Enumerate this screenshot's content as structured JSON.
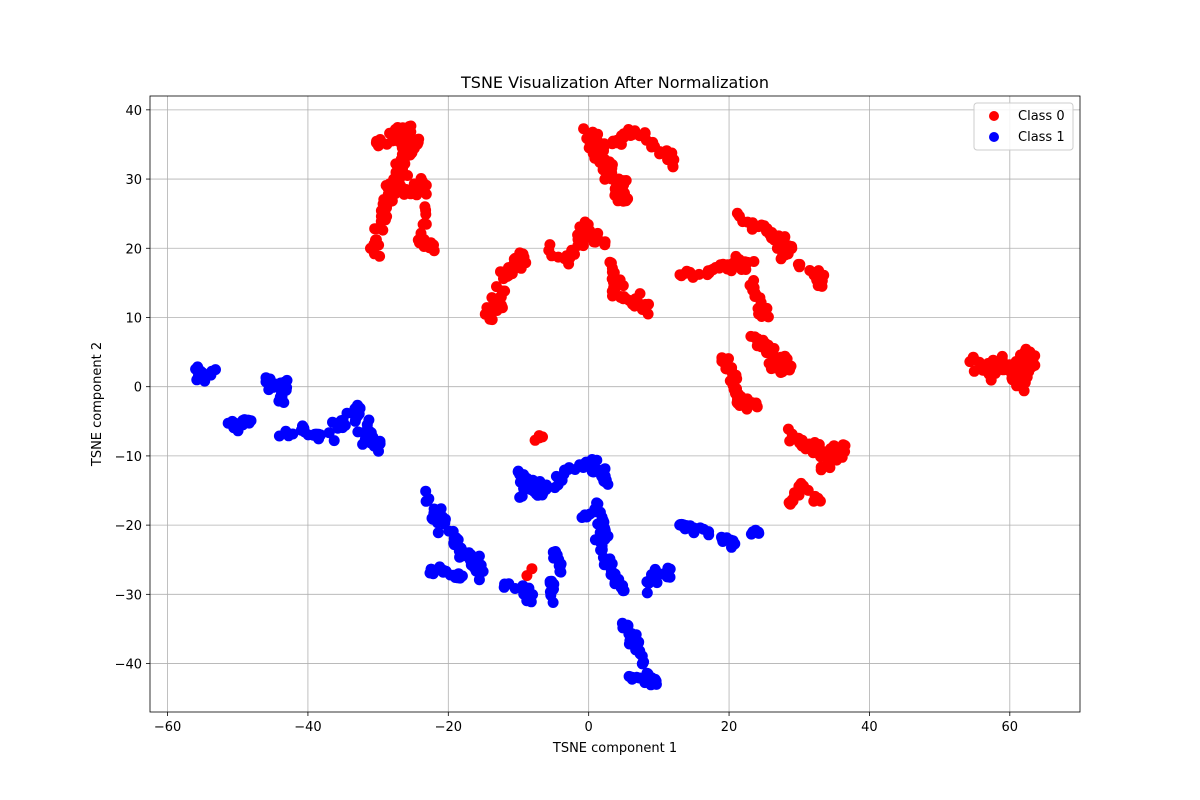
{
  "chart_data": {
    "type": "scatter",
    "title": "TSNE Visualization After Normalization",
    "xlabel": "TSNE component 1",
    "ylabel": "TSNE component 2",
    "xlim": [
      -62.5,
      70
    ],
    "ylim": [
      -47,
      42
    ],
    "xticks": [
      -60,
      -40,
      -20,
      0,
      20,
      40,
      60
    ],
    "yticks": [
      -40,
      -30,
      -20,
      -10,
      0,
      10,
      20,
      30,
      40
    ],
    "grid": true,
    "legend_position": "top-right",
    "series": [
      {
        "name": "Class 0",
        "color": "#ff0000",
        "clusters": [
          {
            "path": [
              [
                -31,
                19
              ],
              [
                -30,
                23
              ],
              [
                -29,
                26
              ],
              [
                -28,
                29
              ],
              [
                -27,
                31
              ],
              [
                -26,
                33
              ],
              [
                -25,
                35
              ],
              [
                -26,
                37
              ],
              [
                -28,
                36
              ],
              [
                -30,
                35
              ]
            ],
            "jitter": 1.0,
            "n": 110
          },
          {
            "path": [
              [
                -27,
                29
              ],
              [
                -25,
                28
              ],
              [
                -24,
                30
              ],
              [
                -23,
                27
              ],
              [
                -24,
                21
              ],
              [
                -22,
                20
              ]
            ],
            "jitter": 0.8,
            "n": 35
          },
          {
            "path": [
              [
                -14,
                10
              ],
              [
                -13,
                12
              ],
              [
                -12,
                15
              ],
              [
                -11,
                17
              ],
              [
                -9,
                19
              ]
            ],
            "jitter": 0.9,
            "n": 45
          },
          {
            "path": [
              [
                -6,
                20
              ],
              [
                -3,
                18
              ],
              [
                -1,
                21
              ],
              [
                0,
                23
              ],
              [
                1,
                22
              ],
              [
                2,
                20
              ]
            ],
            "jitter": 0.8,
            "n": 35
          },
          {
            "path": [
              [
                0,
                37
              ],
              [
                1,
                35
              ],
              [
                2,
                33
              ],
              [
                3,
                31
              ],
              [
                4,
                29
              ],
              [
                5,
                27
              ],
              [
                5,
                30
              ]
            ],
            "jitter": 0.8,
            "n": 70
          },
          {
            "path": [
              [
                3,
                35
              ],
              [
                5,
                36
              ],
              [
                7,
                37
              ],
              [
                9,
                35
              ],
              [
                11,
                33
              ],
              [
                12,
                32
              ]
            ],
            "jitter": 0.7,
            "n": 35
          },
          {
            "path": [
              [
                3,
                18
              ],
              [
                4,
                15
              ],
              [
                5,
                13
              ],
              [
                7,
                12
              ],
              [
                8,
                11
              ]
            ],
            "jitter": 0.8,
            "n": 40
          },
          {
            "path": [
              [
                13,
                16
              ],
              [
                16,
                16.5
              ],
              [
                19,
                17
              ],
              [
                21,
                18
              ],
              [
                23,
                18
              ]
            ],
            "jitter": 0.6,
            "n": 40
          },
          {
            "path": [
              [
                22,
                24.5
              ],
              [
                24,
                23
              ],
              [
                26,
                22
              ],
              [
                28,
                21
              ],
              [
                28,
                19
              ]
            ],
            "jitter": 0.9,
            "n": 40
          },
          {
            "path": [
              [
                22,
                18
              ],
              [
                23,
                15
              ],
              [
                24,
                12
              ],
              [
                25,
                10
              ]
            ],
            "jitter": 0.6,
            "n": 25
          },
          {
            "path": [
              [
                29,
                18
              ],
              [
                31,
                17
              ],
              [
                33,
                16
              ],
              [
                33,
                15
              ]
            ],
            "jitter": 0.6,
            "n": 22
          },
          {
            "path": [
              [
                19,
                4
              ],
              [
                20,
                3
              ],
              [
                21,
                1
              ],
              [
                21,
                -2
              ],
              [
                23,
                -2
              ],
              [
                24,
                -3
              ]
            ],
            "jitter": 0.8,
            "n": 40
          },
          {
            "path": [
              [
                23,
                7
              ],
              [
                25,
                6
              ],
              [
                26,
                5
              ],
              [
                27,
                3
              ],
              [
                28,
                3
              ],
              [
                28,
                4
              ]
            ],
            "jitter": 0.8,
            "n": 40
          },
          {
            "path": [
              [
                28,
                -7
              ],
              [
                30,
                -8
              ],
              [
                32,
                -9
              ],
              [
                34,
                -10
              ],
              [
                36,
                -9
              ],
              [
                33,
                -12
              ]
            ],
            "jitter": 0.9,
            "n": 55
          },
          {
            "path": [
              [
                28,
                -16
              ],
              [
                29,
                -17
              ],
              [
                30,
                -14
              ],
              [
                32,
                -16
              ],
              [
                33,
                -17
              ]
            ],
            "jitter": 0.5,
            "n": 18
          },
          {
            "path": [
              [
                55,
                4
              ],
              [
                57,
                2
              ],
              [
                58,
                3
              ],
              [
                60,
                3
              ],
              [
                61,
                2
              ],
              [
                62,
                1
              ],
              [
                63,
                5
              ],
              [
                61,
                0
              ]
            ],
            "jitter": 1.1,
            "n": 90
          },
          {
            "path": [
              [
                -9,
                -9
              ],
              [
                -7,
                -7
              ],
              [
                -6,
                -8
              ],
              [
                -9,
                -32
              ]
            ],
            "jitter": 0.3,
            "n": 6
          }
        ]
      },
      {
        "name": "Class 1",
        "color": "#0000ff",
        "clusters": [
          {
            "path": [
              [
                -56,
                3
              ],
              [
                -55,
                1
              ],
              [
                -53,
                2.5
              ],
              [
                -56,
                1
              ]
            ],
            "jitter": 0.6,
            "n": 18
          },
          {
            "path": [
              [
                -46,
                1
              ],
              [
                -44,
                0
              ],
              [
                -44,
                -2
              ],
              [
                -43,
                1
              ]
            ],
            "jitter": 0.8,
            "n": 30
          },
          {
            "path": [
              [
                -51,
                -5
              ],
              [
                -50,
                -6
              ],
              [
                -49,
                -5
              ],
              [
                -48,
                -5
              ]
            ],
            "jitter": 0.7,
            "n": 20
          },
          {
            "path": [
              [
                -45,
                -7
              ],
              [
                -43,
                -7
              ],
              [
                -41,
                -6
              ],
              [
                -39,
                -7
              ],
              [
                -38,
                -7
              ]
            ],
            "jitter": 0.5,
            "n": 22
          },
          {
            "path": [
              [
                -36,
                -6
              ],
              [
                -34,
                -5
              ],
              [
                -33,
                -3
              ],
              [
                -32,
                -6
              ],
              [
                -31,
                -8
              ],
              [
                -30,
                -9
              ]
            ],
            "jitter": 0.9,
            "n": 45
          },
          {
            "path": [
              [
                -23,
                -15
              ],
              [
                -22,
                -18
              ],
              [
                -21,
                -20
              ],
              [
                -19,
                -22
              ],
              [
                -18,
                -24
              ],
              [
                -17,
                -25
              ],
              [
                -16,
                -26
              ],
              [
                -15,
                -27
              ]
            ],
            "jitter": 0.8,
            "n": 60
          },
          {
            "path": [
              [
                -24,
                -26
              ],
              [
                -22,
                -26.5
              ],
              [
                -20,
                -27
              ],
              [
                -18,
                -27.5
              ]
            ],
            "jitter": 0.4,
            "n": 22
          },
          {
            "path": [
              [
                -12,
                -28
              ],
              [
                -10,
                -30
              ],
              [
                -8,
                -31
              ],
              [
                -9,
                -29
              ]
            ],
            "jitter": 0.6,
            "n": 20
          },
          {
            "path": [
              [
                -10,
                -12
              ],
              [
                -9,
                -14
              ],
              [
                -7,
                -15
              ],
              [
                -5,
                -14
              ],
              [
                -3,
                -12
              ],
              [
                0,
                -11
              ],
              [
                2,
                -12
              ],
              [
                2,
                -14
              ]
            ],
            "jitter": 0.8,
            "n": 60
          },
          {
            "path": [
              [
                -10,
                -16
              ],
              [
                -8,
                -15
              ],
              [
                -6,
                -16
              ]
            ],
            "jitter": 0.4,
            "n": 10
          },
          {
            "path": [
              [
                1,
                -17
              ],
              [
                2,
                -19
              ],
              [
                2,
                -21
              ],
              [
                2,
                -23
              ],
              [
                2,
                -25
              ],
              [
                3,
                -26
              ],
              [
                4,
                -28
              ],
              [
                5,
                -30
              ]
            ],
            "jitter": 0.6,
            "n": 45
          },
          {
            "path": [
              [
                -5,
                -24
              ],
              [
                -4,
                -25
              ],
              [
                -4,
                -27
              ]
            ],
            "jitter": 0.4,
            "n": 14
          },
          {
            "path": [
              [
                -6,
                -28
              ],
              [
                -5,
                -29
              ],
              [
                -6,
                -31
              ],
              [
                -4,
                -31
              ]
            ],
            "jitter": 0.4,
            "n": 10
          },
          {
            "path": [
              [
                5,
                -34
              ],
              [
                6,
                -36
              ],
              [
                7,
                -38
              ],
              [
                8,
                -40
              ],
              [
                9,
                -42
              ],
              [
                10,
                -43
              ]
            ],
            "jitter": 0.6,
            "n": 38
          },
          {
            "path": [
              [
                5,
                -42
              ],
              [
                7,
                -42
              ],
              [
                9,
                -43
              ]
            ],
            "jitter": 0.4,
            "n": 12
          },
          {
            "path": [
              [
                8,
                -30
              ],
              [
                9,
                -28
              ],
              [
                9,
                -27
              ],
              [
                11,
                -27
              ],
              [
                12,
                -26
              ]
            ],
            "jitter": 0.5,
            "n": 18
          },
          {
            "path": [
              [
                13,
                -20
              ],
              [
                15,
                -20.5
              ],
              [
                17,
                -21
              ],
              [
                19,
                -22
              ],
              [
                21,
                -23
              ]
            ],
            "jitter": 0.5,
            "n": 30
          },
          {
            "path": [
              [
                23,
                -21
              ],
              [
                24,
                -21
              ]
            ],
            "jitter": 0.3,
            "n": 6
          },
          {
            "path": [
              [
                -1,
                -19
              ],
              [
                0,
                -18.5
              ],
              [
                1,
                -18
              ]
            ],
            "jitter": 0.3,
            "n": 6
          }
        ]
      }
    ]
  }
}
